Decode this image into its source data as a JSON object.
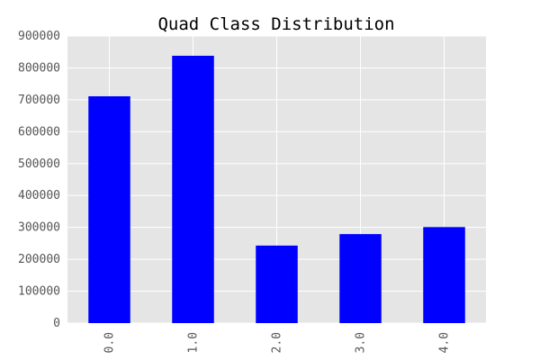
{
  "chart_data": {
    "type": "bar",
    "title": "Quad Class Distribution",
    "xlabel": "",
    "ylabel": "",
    "categories": [
      "0.0",
      "1.0",
      "2.0",
      "3.0",
      "4.0"
    ],
    "values": [
      711000,
      838000,
      243000,
      279000,
      301000
    ],
    "ylim": [
      0,
      900000
    ],
    "yticks": [
      "0",
      "100000",
      "200000",
      "300000",
      "400000",
      "500000",
      "600000",
      "700000",
      "800000",
      "900000"
    ],
    "grid": true,
    "legend": "none",
    "colors": {
      "bar": "#0000ff",
      "plot_background": "#e5e5e5",
      "grid": "#ffffff"
    }
  }
}
